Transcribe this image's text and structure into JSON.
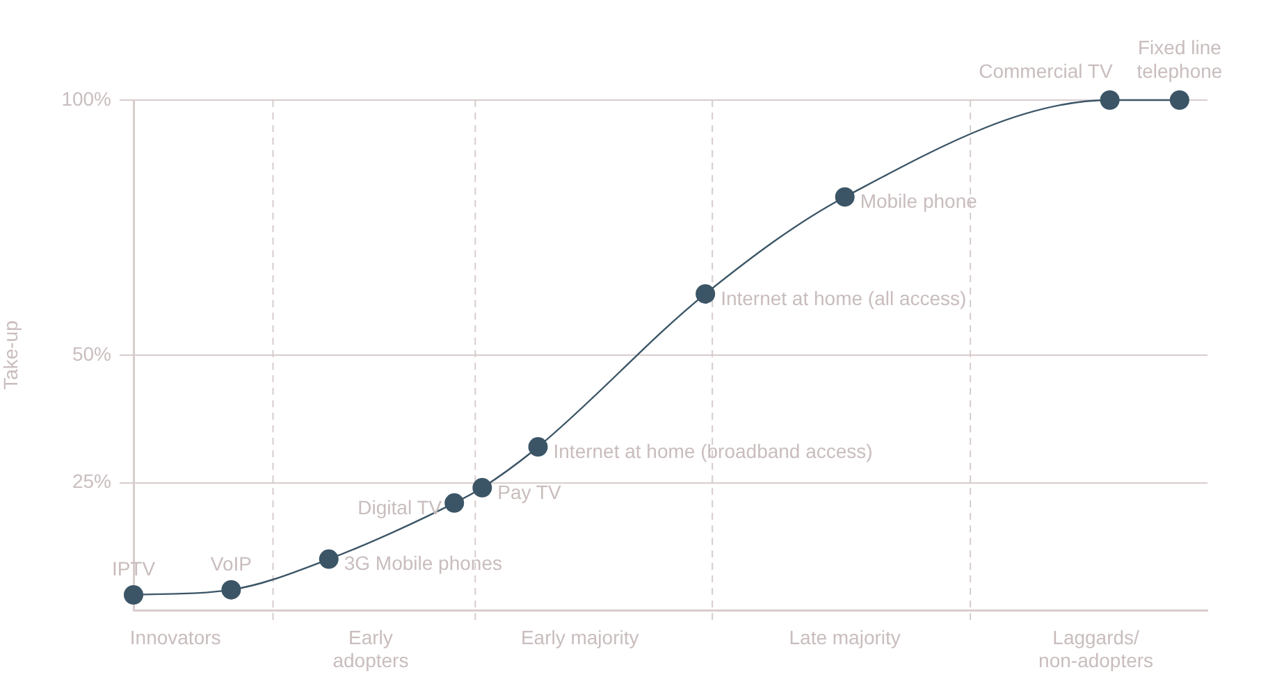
{
  "chart_data": {
    "type": "line",
    "ylabel": "Take-up",
    "categories": [
      null,
      null,
      null,
      "Innovators",
      null,
      null,
      null,
      null,
      null,
      null,
      null,
      null,
      null,
      null,
      null,
      null,
      null,
      "Early\nadopters",
      null,
      null,
      null,
      null,
      null,
      null,
      null,
      null,
      null,
      null,
      null,
      null,
      null,
      null,
      "Early majority",
      null,
      null,
      null,
      null,
      null,
      null,
      null,
      null,
      null,
      null,
      null,
      null,
      null,
      null,
      null,
      null,
      null,
      null,
      "Late majority",
      null,
      null,
      null,
      null,
      null,
      null,
      null,
      null,
      null,
      null,
      null,
      null,
      null,
      null,
      null,
      null,
      null,
      "Laggards/\nnon-adopters",
      null,
      null,
      null,
      null,
      null,
      null,
      null,
      null
    ],
    "series": [
      {
        "color": "#3b5566",
        "values": [
          3,
          null,
          null,
          null,
          null,
          null,
          null,
          4,
          null,
          null,
          null,
          null,
          null,
          null,
          10,
          null,
          null,
          null,
          null,
          null,
          null,
          null,
          null,
          21,
          null,
          24,
          null,
          null,
          null,
          32,
          null,
          null,
          null,
          null,
          null,
          null,
          null,
          null,
          null,
          null,
          null,
          62,
          null,
          null,
          null,
          null,
          null,
          null,
          null,
          null,
          null,
          81,
          null,
          null,
          null,
          null,
          null,
          null,
          null,
          null,
          null,
          null,
          null,
          null,
          null,
          null,
          null,
          null,
          null,
          null,
          100,
          null,
          null,
          null,
          null,
          100,
          null,
          null
        ]
      }
    ],
    "ylim": [
      0,
      100
    ],
    "yticks": [
      {
        "value": 25,
        "label": "25%"
      },
      {
        "value": 50,
        "label": "50%"
      },
      {
        "value": 100,
        "label": "100%"
      }
    ],
    "annotations": [
      "IPTV",
      "VoIP",
      "3G Mobile phones",
      "Digital TV",
      "Pay TV",
      "Internet at home (broadband access)",
      "Internet at home (all access)",
      "Mobile phone",
      "Commercial TV",
      "Fixed line\ntelephone"
    ],
    "grid": "y",
    "marker": "circle",
    "line_style": "solid"
  }
}
